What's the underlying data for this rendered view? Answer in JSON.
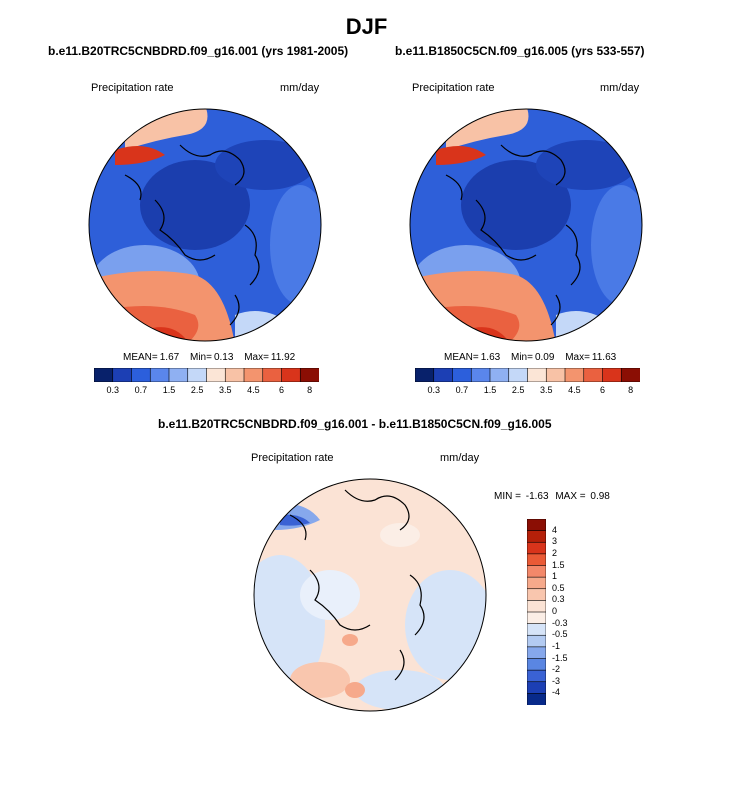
{
  "title": "DJF",
  "variable_label": "Precipitation rate",
  "units_label": "mm/day",
  "panel_left": {
    "subtitle": "b.e11.B20TRC5CNBDRD.f09_g16.001 (yrs 1981-2005)",
    "mean_label": "MEAN=",
    "mean_value": "1.67",
    "min_label": "Min=",
    "min_value": "0.13",
    "max_label": "Max=",
    "max_value": "11.92"
  },
  "panel_right": {
    "subtitle": "b.e11.B1850C5CN.f09_g16.005 (yrs 533-557)",
    "mean_label": "MEAN=",
    "mean_value": "1.63",
    "min_label": "Min=",
    "min_value": "0.09",
    "max_label": "Max=",
    "max_value": "11.63"
  },
  "panel_diff": {
    "subtitle": "b.e11.B20TRC5CNBDRD.f09_g16.001 - b.e11.B1850C5CN.f09_g16.005",
    "min_label": "MIN =",
    "min_value": "-1.63",
    "max_label": "MAX =",
    "max_value": "0.98"
  },
  "colorbar_abs": {
    "labels": [
      "0.3",
      "0.7",
      "1.5",
      "2.5",
      "3.5",
      "4.5",
      "6",
      "8"
    ],
    "colors": [
      "#08216b",
      "#1c3fb4",
      "#2c5fdc",
      "#5a86ec",
      "#8fb0f2",
      "#c4d8f8",
      "#fbe5d6",
      "#f8c2a6",
      "#f3946e",
      "#ea6140",
      "#d9341b",
      "#8b0e04"
    ]
  },
  "colorbar_diff": {
    "labels": [
      "4",
      "3",
      "2",
      "1.5",
      "1",
      "0.5",
      "0.3",
      "0",
      "-0.3",
      "-0.5",
      "-1",
      "-1.5",
      "-2",
      "-3",
      "-4"
    ],
    "colors": [
      "#8b0e04",
      "#b52009",
      "#d9341b",
      "#ea5a36",
      "#f3886a",
      "#f6a98b",
      "#f9c6ae",
      "#fbe3d5",
      "#fbeee6",
      "#d6e4f8",
      "#b3cbf2",
      "#86a8ec",
      "#5a86e2",
      "#3a62d4",
      "#1c3fb4",
      "#082a8a"
    ]
  }
}
